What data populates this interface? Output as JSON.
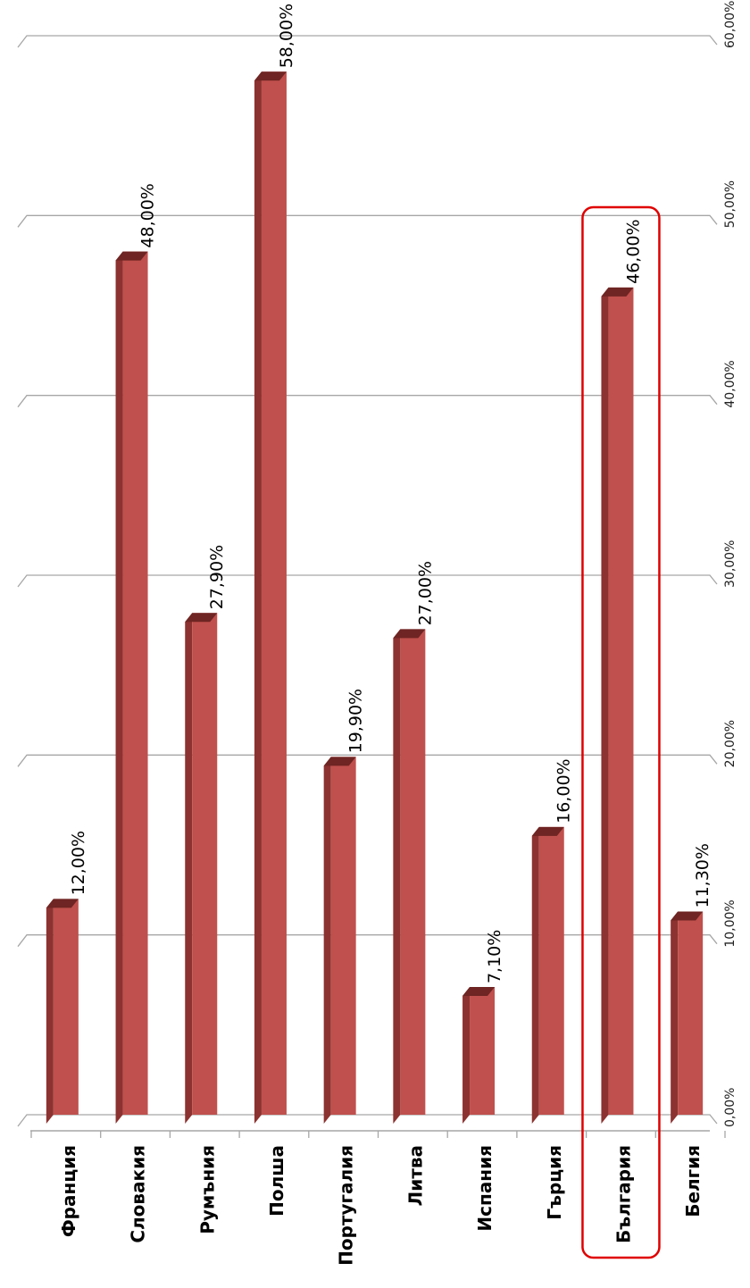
{
  "chart_data": {
    "type": "bar",
    "orientation": "vertical-rotated",
    "categories": [
      "Франция",
      "Словакия",
      "Румъния",
      "Полша",
      "Португалия",
      "Литва",
      "Испания",
      "Гърция",
      "България",
      "Белгия"
    ],
    "values": [
      12.0,
      48.0,
      27.9,
      58.0,
      19.9,
      27.0,
      7.1,
      16.0,
      46.0,
      11.3
    ],
    "value_labels": [
      "12,00%",
      "48,00%",
      "27,90%",
      "58,00%",
      "19,90%",
      "27,00%",
      "7,10%",
      "16,00%",
      "46,00%",
      "11,30%"
    ],
    "y_ticks": [
      0,
      10,
      20,
      30,
      40,
      50,
      60
    ],
    "y_tick_labels": [
      "0,00%",
      "10,00%",
      "20,00%",
      "30,00%",
      "40,00%",
      "50,00%",
      "60,00%"
    ],
    "ylim": [
      0,
      60
    ],
    "grid": true,
    "highlighted_category": "България",
    "title": "",
    "xlabel": "",
    "ylabel": ""
  },
  "colors": {
    "bar_front": "#c0504d",
    "bar_side": "#8c3230",
    "bar_top": "#6e2523",
    "grid": "#a6a6a6",
    "highlight": "#e00000"
  }
}
